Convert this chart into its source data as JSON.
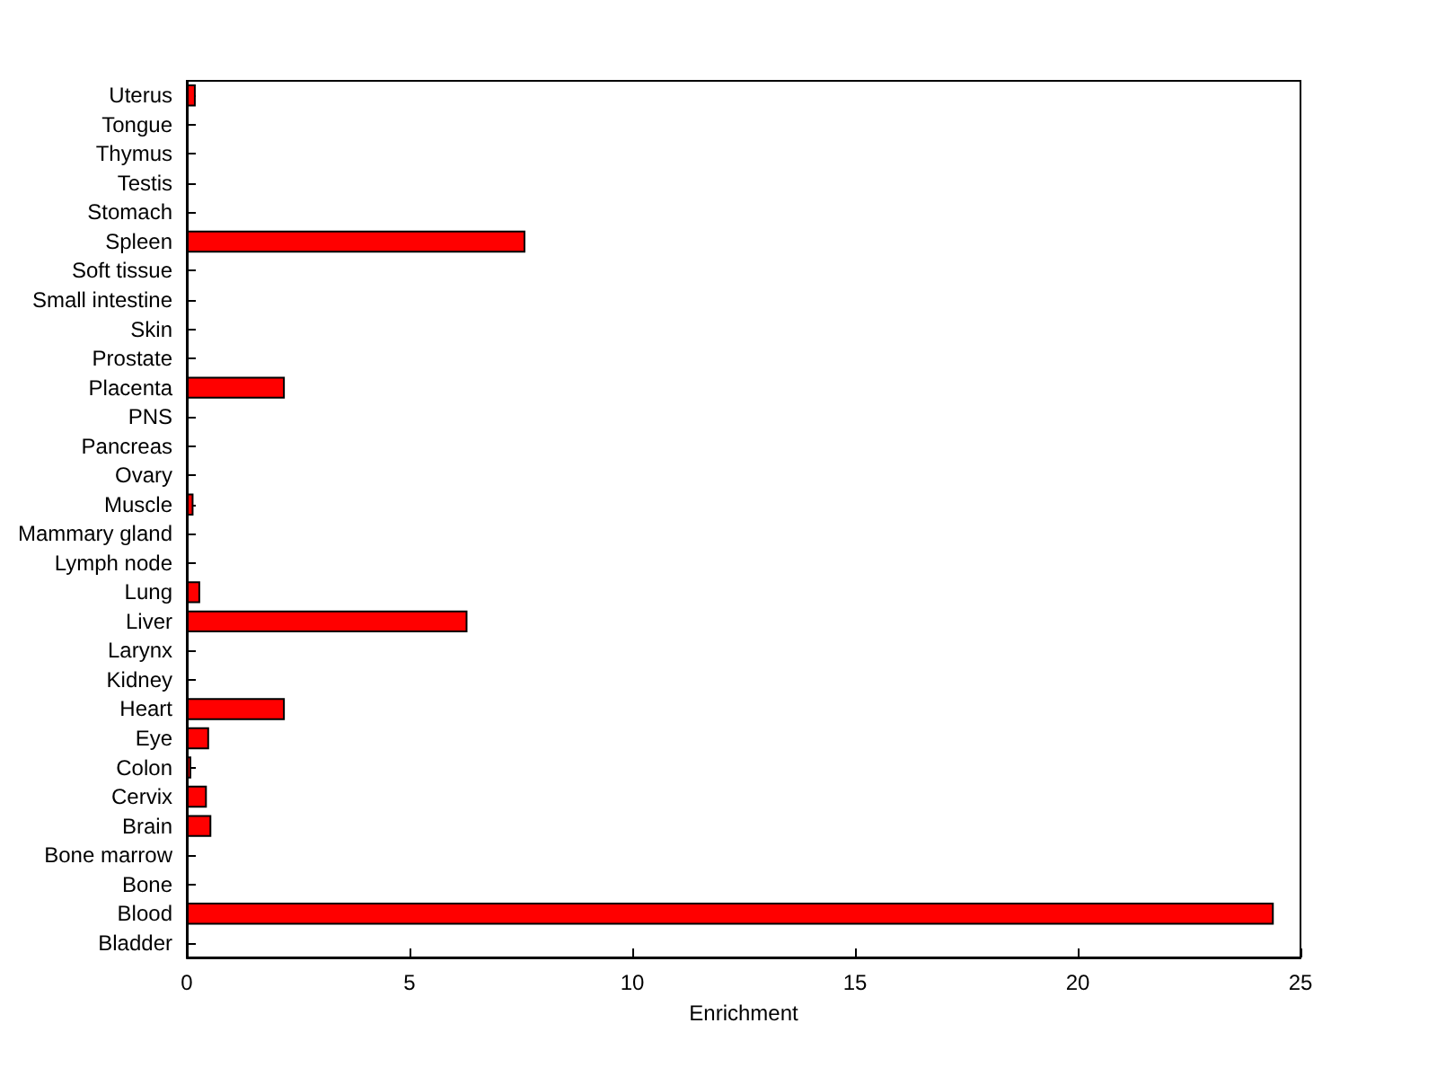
{
  "chart_data": {
    "type": "bar",
    "orientation": "horizontal",
    "xlabel": "Enrichment",
    "categories": [
      "Uterus",
      "Tongue",
      "Thymus",
      "Testis",
      "Stomach",
      "Spleen",
      "Soft tissue",
      "Small intestine",
      "Skin",
      "Prostate",
      "Placenta",
      "PNS",
      "Pancreas",
      "Ovary",
      "Muscle",
      "Mammary gland",
      "Lymph node",
      "Lung",
      "Liver",
      "Larynx",
      "Kidney",
      "Heart",
      "Eye",
      "Colon",
      "Cervix",
      "Brain",
      "Bone marrow",
      "Bone",
      "Blood",
      "Bladder"
    ],
    "values": [
      0.2,
      0,
      0,
      0,
      0,
      7.6,
      0,
      0,
      0,
      0,
      2.2,
      0,
      0,
      0,
      0.15,
      0,
      0,
      0.3,
      6.3,
      0,
      0,
      2.2,
      0.5,
      0.1,
      0.45,
      0.55,
      0,
      0,
      24.4,
      0
    ],
    "color": "#ff0000",
    "xlim": [
      0,
      25
    ],
    "xticks": [
      0,
      5,
      10,
      15,
      20,
      25
    ],
    "grid": false
  }
}
